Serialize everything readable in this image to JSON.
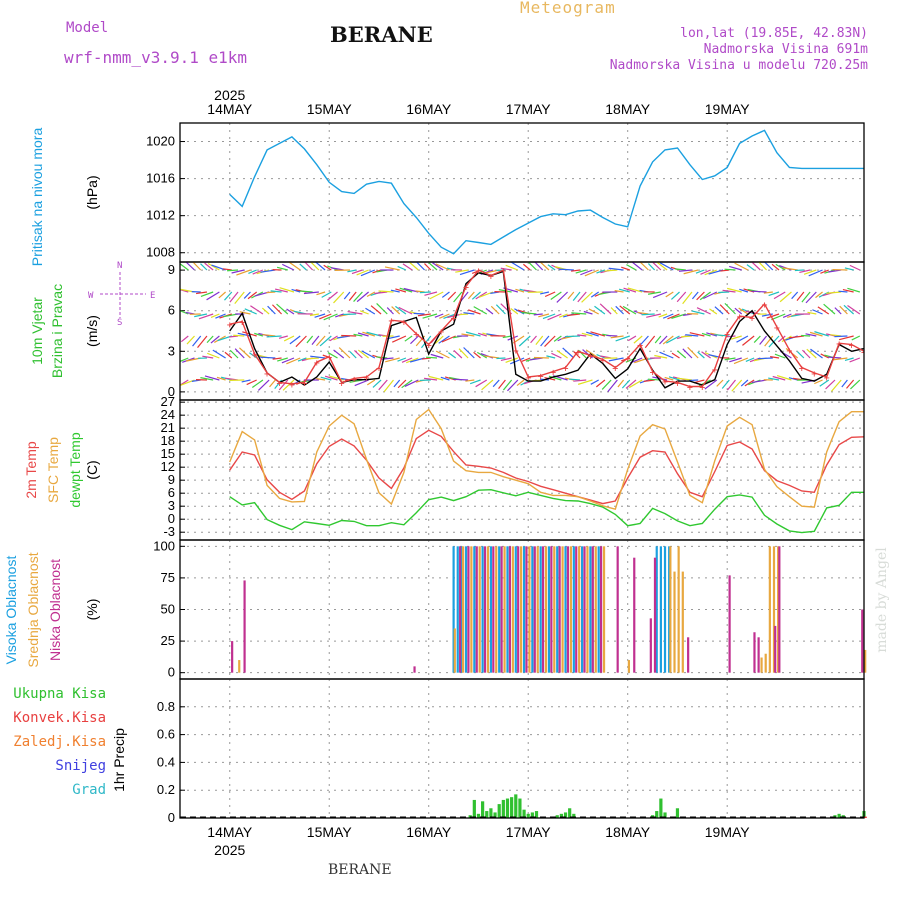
{
  "header": {
    "model_label": "Model",
    "model_name": "wrf-nmm_v3.9.1 e1km",
    "location": "BERANE",
    "product": "Meteogram",
    "lonlat": "lon,lat (19.85E, 42.83N)",
    "elevation": "Nadmorska Visina 691m",
    "model_elevation": "Nadmorska Visina u modelu 720.25m"
  },
  "footer": {
    "location": "BERANE",
    "watermark": "made by Angel"
  },
  "chart_data": [
    {
      "type": "line",
      "panel": "pressure",
      "title": "",
      "ylabel": "Pritisak na nivou mora",
      "unit": "(hPa)",
      "ylim": [
        1007,
        1022
      ],
      "yticks": [
        1008,
        1012,
        1016,
        1020
      ],
      "x_top_year": "2025",
      "x_ticks": [
        "14MAY",
        "15MAY",
        "16MAY",
        "17MAY",
        "18MAY",
        "19MAY"
      ],
      "x_bottom_year": "2025",
      "grid": true,
      "series": [
        {
          "color": "#1ba0e0",
          "x": [
            0,
            3,
            6,
            9,
            12,
            15,
            18,
            21,
            24,
            27,
            30,
            33,
            36,
            39,
            42,
            45,
            48,
            51,
            54,
            57,
            60,
            63,
            66,
            69,
            72,
            75,
            78,
            81,
            84,
            87,
            90,
            93,
            96,
            99,
            102,
            105,
            108,
            111,
            114,
            117,
            120,
            123,
            126,
            129,
            132,
            135,
            138,
            141,
            144,
            147,
            150,
            153
          ],
          "values": [
            1014.3,
            1013,
            1016.2,
            1019.1,
            1019.8,
            1020.5,
            1019.2,
            1017.5,
            1015.6,
            1014.6,
            1014.4,
            1015.4,
            1015.7,
            1015.5,
            1013.3,
            1011.8,
            1010.1,
            1008.6,
            1007.9,
            1009.3,
            1009.1,
            1008.9,
            1009.7,
            1010.5,
            1011.2,
            1011.9,
            1012.2,
            1012.1,
            1012.5,
            1012.6,
            1011.8,
            1011.1,
            1010.8,
            1015.2,
            1017.8,
            1019.1,
            1019.3,
            1017.5,
            1015.9,
            1016.3,
            1017.2,
            1019.8,
            1020.6,
            1021.2,
            1018.8,
            1017.2,
            1017.1,
            1017.1,
            1017.1,
            1017.1,
            1017.1,
            1017.1
          ]
        }
      ]
    },
    {
      "type": "line",
      "panel": "wind",
      "ylabel": "10m Vjetar Brzina i Pravac",
      "unit": "(m/s)",
      "direction_labels": [
        "W",
        "E",
        "N",
        "S"
      ],
      "ylim": [
        -0.6,
        9.6
      ],
      "yticks": [
        0,
        3,
        6,
        9
      ],
      "grid": true,
      "series": [
        {
          "name": "speed",
          "color": "#000000",
          "x": [
            0,
            3,
            6,
            9,
            12,
            15,
            18,
            21,
            24,
            27,
            30,
            33,
            36,
            39,
            42,
            45,
            48,
            51,
            54,
            57,
            60,
            63,
            66,
            69,
            72,
            75,
            78,
            81,
            84,
            87,
            90,
            93,
            96,
            99,
            102,
            105,
            108,
            111,
            114,
            117,
            120,
            123,
            126,
            129,
            132,
            135,
            138,
            141,
            144,
            147,
            150,
            153
          ],
          "values": [
            4.5,
            5.8,
            3.2,
            1.4,
            0.7,
            1.1,
            0.5,
            1.1,
            2.2,
            0.7,
            0.9,
            0.9,
            1.0,
            4.9,
            5.2,
            5.5,
            2.8,
            4.5,
            5.0,
            8.0,
            8.8,
            8.6,
            8.9,
            1.3,
            0.8,
            0.8,
            1.1,
            1.3,
            1.6,
            2.8,
            2.1,
            1.0,
            1.7,
            3.2,
            1.6,
            0.3,
            0.8,
            0.8,
            0.5,
            0.9,
            3.5,
            5.2,
            6.0,
            4.5,
            3.4,
            2.3,
            1.0,
            0.8,
            1.3,
            3.5,
            3.0,
            3.2
          ]
        },
        {
          "name": "gust",
          "color": "#e84040",
          "x": [
            0,
            3,
            6,
            9,
            12,
            15,
            18,
            21,
            24,
            27,
            30,
            33,
            36,
            39,
            42,
            45,
            48,
            51,
            54,
            57,
            60,
            63,
            66,
            69,
            72,
            75,
            78,
            81,
            84,
            87,
            90,
            93,
            96,
            99,
            102,
            105,
            108,
            111,
            114,
            117,
            120,
            123,
            126,
            129,
            132,
            135,
            138,
            141,
            144,
            147,
            150,
            153
          ],
          "values": [
            5.0,
            5.2,
            2.8,
            1.4,
            0.7,
            0.6,
            0.7,
            2.2,
            2.6,
            0.7,
            1.0,
            1.1,
            1.8,
            5.3,
            5.2,
            4.3,
            3.5,
            4.5,
            5.5,
            7.8,
            9.0,
            8.6,
            9.0,
            3.1,
            1.1,
            1.2,
            1.5,
            1.8,
            3.0,
            2.7,
            2.4,
            1.8,
            2.5,
            3.5,
            1.5,
            0.8,
            0.7,
            0.4,
            0.4,
            1.7,
            4.3,
            5.6,
            5.5,
            6.5,
            4.8,
            3.1,
            1.8,
            1.4,
            1.1,
            3.6,
            3.5,
            3.0
          ]
        }
      ],
      "barb_colors": [
        "#e63333",
        "#e8a030",
        "#e0e020",
        "#40d040",
        "#20c0c0",
        "#3060f0",
        "#8030d0",
        "#d040a0"
      ]
    },
    {
      "type": "line",
      "panel": "temperature",
      "ylabels": [
        "2m Temp",
        "SFC Temp",
        "dewpt Temp"
      ],
      "unit": "(C)",
      "ylim": [
        -4.8,
        27.5
      ],
      "yticks": [
        -3,
        0,
        3,
        6,
        9,
        12,
        15,
        18,
        21,
        24,
        27
      ],
      "grid": true,
      "series": [
        {
          "name": "2m Temp",
          "color": "#e84848",
          "x": [
            0,
            3,
            6,
            9,
            12,
            15,
            18,
            21,
            24,
            27,
            30,
            33,
            36,
            39,
            42,
            45,
            48,
            51,
            54,
            57,
            60,
            63,
            66,
            69,
            72,
            75,
            78,
            81,
            84,
            87,
            90,
            93,
            96,
            99,
            102,
            105,
            108,
            111,
            114,
            117,
            120,
            123,
            126,
            129,
            132,
            135,
            138,
            141,
            144,
            147,
            150,
            153
          ],
          "values": [
            11.3,
            15.5,
            14.8,
            9.1,
            6.2,
            4.6,
            6.5,
            12.8,
            16.8,
            18.5,
            16.9,
            13.6,
            9.5,
            7.1,
            11.8,
            18.6,
            20.5,
            19.1,
            15.6,
            12.5,
            12.2,
            11.8,
            10.8,
            9.5,
            8.7,
            7.6,
            6.8,
            6.0,
            5.2,
            4.4,
            3.6,
            4.2,
            9.5,
            14.3,
            15.8,
            15.5,
            10.5,
            6.2,
            5.2,
            11.0,
            17.0,
            17.8,
            16.2,
            11.2,
            8.9,
            7.8,
            6.5,
            6.2,
            12.5,
            17.2,
            18.9,
            19.0
          ]
        },
        {
          "name": "SFC Temp",
          "color": "#e8a840",
          "x": [
            0,
            3,
            6,
            9,
            12,
            15,
            18,
            21,
            24,
            27,
            30,
            33,
            36,
            39,
            42,
            45,
            48,
            51,
            54,
            57,
            60,
            63,
            66,
            69,
            72,
            75,
            78,
            81,
            84,
            87,
            90,
            93,
            96,
            99,
            102,
            105,
            108,
            111,
            114,
            117,
            120,
            123,
            126,
            129,
            132,
            135,
            138,
            141,
            144,
            147,
            150,
            153
          ],
          "values": [
            13.2,
            20.2,
            18.3,
            7.8,
            4.8,
            4.0,
            4.1,
            15.5,
            21.5,
            24.0,
            22.0,
            13.8,
            6.1,
            3.5,
            10.8,
            23.0,
            25.3,
            20.9,
            13.4,
            11.2,
            10.8,
            10.8,
            9.8,
            9.0,
            8.2,
            6.2,
            5.5,
            5.5,
            5.2,
            4.2,
            3.1,
            2.3,
            11.5,
            19.2,
            21.8,
            20.8,
            13.2,
            5.5,
            3.8,
            13.5,
            21.5,
            23.5,
            21.8,
            11.5,
            7.5,
            5.2,
            3.0,
            2.8,
            15.5,
            22.5,
            24.8,
            24.8
          ]
        },
        {
          "name": "dewpt Temp",
          "color": "#30c830",
          "x": [
            0,
            3,
            6,
            9,
            12,
            15,
            18,
            21,
            24,
            27,
            30,
            33,
            36,
            39,
            42,
            45,
            48,
            51,
            54,
            57,
            60,
            63,
            66,
            69,
            72,
            75,
            78,
            81,
            84,
            87,
            90,
            93,
            96,
            99,
            102,
            105,
            108,
            111,
            114,
            117,
            120,
            123,
            126,
            129,
            132,
            135,
            138,
            141,
            144,
            147,
            150,
            153
          ],
          "values": [
            5.2,
            3.3,
            3.8,
            -0.1,
            -1.4,
            -2.4,
            -0.6,
            -1.0,
            -1.4,
            -0.3,
            -0.5,
            -1.5,
            -1.5,
            -0.8,
            -1.3,
            1.5,
            4.5,
            5.1,
            4.3,
            5.2,
            6.7,
            6.8,
            6.1,
            5.4,
            6.2,
            5.5,
            4.8,
            4.3,
            4.2,
            3.6,
            2.8,
            1.1,
            -1.5,
            -1.0,
            2.5,
            1.3,
            -0.4,
            -1.5,
            -1.0,
            2.3,
            5.2,
            5.6,
            5.1,
            0.9,
            -1.1,
            -2.7,
            -3.1,
            -2.8,
            2.6,
            3.2,
            6.2,
            6.2
          ]
        }
      ]
    },
    {
      "type": "bar",
      "panel": "cloud",
      "ylabels": [
        "Visoka Oblacnost",
        "Srednja Oblacnost",
        "Niska Oblacnost"
      ],
      "unit": "(%)",
      "ylim": [
        -5,
        105
      ],
      "yticks": [
        0,
        25,
        50,
        75,
        100
      ],
      "grid": true,
      "series": [
        {
          "name": "Visoka Oblacnost",
          "color": "#1ba0e0",
          "x": [
            54,
            55,
            56,
            57,
            59,
            61,
            63,
            65,
            67,
            69,
            71,
            73,
            75,
            77,
            79,
            81,
            83,
            85,
            87,
            89,
            103,
            104,
            105,
            106
          ],
          "values": [
            100,
            100,
            100,
            100,
            100,
            100,
            100,
            100,
            100,
            100,
            100,
            100,
            100,
            100,
            100,
            100,
            100,
            100,
            100,
            100,
            100,
            100,
            100,
            100
          ]
        },
        {
          "name": "Srednja Oblacnost",
          "color": "#e8a840",
          "x": [
            2,
            54,
            56,
            58,
            60,
            62,
            64,
            66,
            68,
            70,
            72,
            74,
            76,
            78,
            80,
            82,
            84,
            86,
            88,
            90,
            96,
            106,
            107,
            108,
            109,
            128,
            129,
            130,
            131,
            132,
            153
          ],
          "values": [
            10,
            35,
            100,
            100,
            100,
            100,
            100,
            100,
            100,
            100,
            100,
            100,
            100,
            100,
            100,
            100,
            100,
            100,
            100,
            100,
            10,
            100,
            80,
            100,
            80,
            12,
            15,
            100,
            100,
            100,
            18
          ]
        },
        {
          "name": "Niska Oblacnost",
          "color": "#c03090",
          "x": [
            0,
            3,
            44,
            55,
            57,
            59,
            61,
            63,
            65,
            67,
            69,
            71,
            73,
            75,
            77,
            79,
            81,
            83,
            85,
            87,
            89,
            93,
            97,
            101,
            102,
            110,
            120,
            126,
            127,
            131,
            132,
            152
          ],
          "values": [
            25,
            73,
            5,
            100,
            100,
            100,
            100,
            100,
            100,
            100,
            100,
            100,
            100,
            100,
            100,
            100,
            100,
            100,
            100,
            100,
            100,
            100,
            91,
            43,
            91,
            28,
            77,
            32,
            28,
            37,
            100,
            50
          ]
        }
      ]
    },
    {
      "type": "bar",
      "panel": "precipitation",
      "ylabel": "1hr Precip (mm)",
      "legend": [
        "Ukupna Kisa",
        "Konvek.Kisa",
        "Zaledj.Kisa",
        "Snijeg",
        "Grad"
      ],
      "legend_colors": [
        "#30c030",
        "#e84040",
        "#f08030",
        "#4040e0",
        "#30b8c8"
      ],
      "ylim": [
        0,
        1.0
      ],
      "yticks": [
        0,
        0.2,
        0.4,
        0.6,
        0.8
      ],
      "grid": true,
      "series": [
        {
          "name": "Ukupna Kisa",
          "color": "#30c030",
          "x": [
            58,
            59,
            60,
            61,
            62,
            63,
            64,
            65,
            66,
            67,
            68,
            69,
            70,
            71,
            72,
            73,
            74,
            78,
            79,
            80,
            81,
            82,
            83,
            102,
            103,
            104,
            105,
            108,
            146,
            147,
            148,
            153
          ],
          "values": [
            0.02,
            0.13,
            0.03,
            0.12,
            0.05,
            0.07,
            0.04,
            0.1,
            0.13,
            0.14,
            0.15,
            0.17,
            0.14,
            0.06,
            0.03,
            0.04,
            0.05,
            0.01,
            0.02,
            0.03,
            0.04,
            0.07,
            0.03,
            0.02,
            0.05,
            0.14,
            0.04,
            0.07,
            0.02,
            0.03,
            0.02,
            0.05
          ]
        },
        {
          "name": "Konvek.Kisa",
          "color": "#e84040",
          "x": [
            153
          ],
          "values": [
            0.01
          ]
        }
      ]
    }
  ]
}
